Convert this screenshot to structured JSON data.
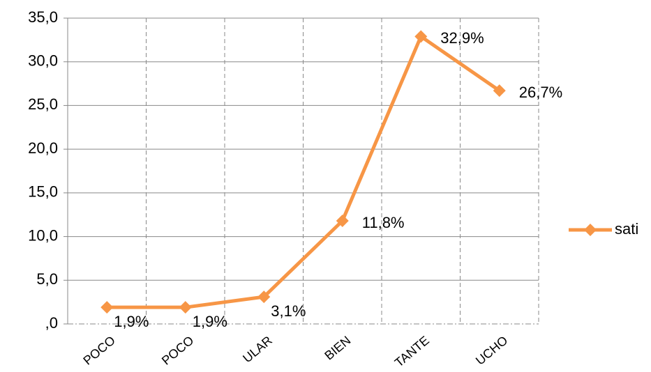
{
  "chart_data": {
    "type": "line",
    "categories": [
      "POCO",
      "POCO",
      "ULAR",
      "BIEN",
      "TANTE",
      "UCHO"
    ],
    "series": [
      {
        "name": "sati",
        "color": "#f79646",
        "values": [
          1.9,
          1.9,
          3.1,
          11.8,
          32.9,
          26.7
        ],
        "value_labels": [
          "1,9%",
          "1,9%",
          "3,1%",
          "11,8%",
          "32,9%",
          "26,7%"
        ]
      }
    ],
    "ylim": [
      0,
      35
    ],
    "yticks": [
      {
        "value": 0,
        "label": ",0"
      },
      {
        "value": 5,
        "label": "5,0"
      },
      {
        "value": 10,
        "label": "10,0"
      },
      {
        "value": 15,
        "label": "15,0"
      },
      {
        "value": 20,
        "label": "20,0"
      },
      {
        "value": 25,
        "label": "25,0"
      },
      {
        "value": 30,
        "label": "30,0"
      },
      {
        "value": 35,
        "label": "35,0"
      }
    ],
    "grid": true,
    "legend": "right"
  }
}
